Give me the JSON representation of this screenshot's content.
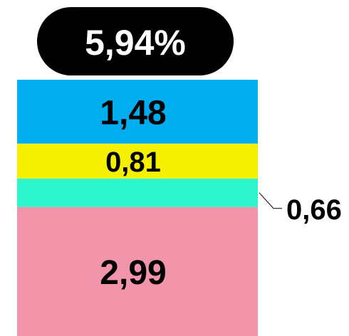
{
  "chart_data": {
    "type": "bar",
    "stacked": true,
    "categories": [
      null
    ],
    "series": [
      {
        "color": "#f295ab",
        "values": [
          2.99
        ],
        "value_labels": [
          "2,99"
        ]
      },
      {
        "color": "#2cf5cc",
        "values": [
          0.66
        ],
        "value_labels": [
          "0,66"
        ]
      },
      {
        "color": "#f5ef00",
        "values": [
          0.81
        ],
        "value_labels": [
          "0,81"
        ]
      },
      {
        "color": "#00adef",
        "values": [
          1.48
        ],
        "value_labels": [
          "1,48"
        ]
      }
    ],
    "total": 5.94,
    "total_label": "5,94%"
  }
}
